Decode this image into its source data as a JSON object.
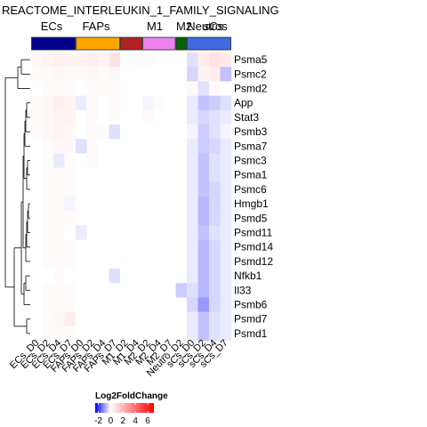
{
  "chart_data": {
    "type": "heatmap",
    "title": "REACTOME_INTERLEUKIN_1_FAMILY_SIGNALING",
    "group_labels": [
      "ECs",
      "FAPs",
      "M1",
      "M2",
      "Neutros",
      "sCs"
    ],
    "groups": [
      {
        "name": "ECs",
        "color": "#00008b",
        "span": [
          0,
          3
        ]
      },
      {
        "name": "FAPs",
        "color": "#ffa500",
        "span": [
          4,
          7
        ]
      },
      {
        "name": "M1",
        "color": "#b22222",
        "span": [
          8,
          9
        ]
      },
      {
        "name": "M2",
        "color": "#ee82ee",
        "span": [
          10,
          12
        ]
      },
      {
        "name": "Neutros",
        "color": "#006400",
        "span": [
          13,
          13
        ]
      },
      {
        "name": "sCs",
        "color": "#4169e1",
        "span": [
          14,
          17
        ]
      }
    ],
    "columns": [
      "ECs_D0",
      "ECs_D2",
      "ECs_D4",
      "ECs_D7",
      "FAPs_D0",
      "FAPs_D2",
      "FAPs_D4",
      "FAPs_D7",
      "M1_D2",
      "M1_D4",
      "M2_D2",
      "M2_D4",
      "M2_D7",
      "Neutro_D2",
      "sCs_D0",
      "sCs_D2",
      "sCs_D4",
      "sCs_D7"
    ],
    "rows": [
      "Psma5",
      "Psmc2",
      "Psmd2",
      "App",
      "Stat3",
      "Psmb3",
      "Psma7",
      "Psmc3",
      "Psma1",
      "Psmc6",
      "Hmgb1",
      "Psmd5",
      "Psmd11",
      "Psmd14",
      "Psmd12",
      "Nfkb1",
      "Il33",
      "Psmb6",
      "Psmd7",
      "Psmd1"
    ],
    "values": [
      [
        0.2,
        0.3,
        0.4,
        0.3,
        0.3,
        0.4,
        0.3,
        0.8,
        0.0,
        0.1,
        0.1,
        0.0,
        0.0,
        0.0,
        -0.3,
        0.5,
        0.8,
        0.6
      ],
      [
        0.1,
        0.1,
        0.2,
        0.1,
        0.1,
        0.2,
        0.1,
        0.2,
        0.0,
        0.0,
        0.0,
        0.0,
        0.0,
        0.0,
        -0.4,
        0.3,
        0.5,
        -0.6
      ],
      [
        0.0,
        0.1,
        0.1,
        0.1,
        0.0,
        0.1,
        0.1,
        0.1,
        0.0,
        0.0,
        0.0,
        0.0,
        0.0,
        0.0,
        0.2,
        -0.3,
        0.1,
        0.0
      ],
      [
        0.1,
        0.2,
        0.4,
        0.3,
        -0.2,
        0.1,
        0.0,
        0.1,
        0.0,
        0.0,
        -0.1,
        0.1,
        0.0,
        0.0,
        -0.2,
        -0.6,
        -0.5,
        -0.3
      ],
      [
        0.1,
        0.2,
        0.3,
        0.3,
        0.0,
        0.1,
        0.0,
        0.1,
        0.0,
        0.0,
        0.1,
        0.0,
        0.0,
        0.0,
        -0.2,
        -0.4,
        -0.3,
        -0.2
      ],
      [
        0.1,
        0.2,
        0.3,
        0.2,
        0.0,
        0.1,
        0.1,
        -0.3,
        0.0,
        0.0,
        0.0,
        0.0,
        0.0,
        0.0,
        -0.1,
        -0.5,
        -0.3,
        -0.1
      ],
      [
        0.0,
        0.1,
        0.2,
        0.2,
        -0.3,
        0.1,
        0.0,
        0.0,
        0.0,
        0.0,
        0.0,
        0.0,
        0.0,
        0.0,
        -0.2,
        -0.5,
        -0.4,
        -0.2
      ],
      [
        0.0,
        0.1,
        -0.2,
        0.1,
        0.0,
        0.1,
        0.0,
        0.0,
        0.0,
        0.0,
        0.0,
        0.0,
        0.0,
        0.0,
        -0.2,
        -0.6,
        -0.3,
        -0.2
      ],
      [
        0.0,
        0.1,
        0.1,
        0.1,
        0.0,
        0.0,
        0.0,
        0.0,
        0.0,
        0.0,
        0.0,
        0.0,
        0.0,
        0.0,
        -0.2,
        -0.6,
        -0.3,
        -0.2
      ],
      [
        0.0,
        0.1,
        0.1,
        0.1,
        0.0,
        0.0,
        0.0,
        0.0,
        0.0,
        0.0,
        0.0,
        0.0,
        0.0,
        0.0,
        -0.2,
        -0.6,
        -0.4,
        -0.2
      ],
      [
        0.0,
        0.1,
        0.1,
        -0.1,
        0.0,
        0.0,
        0.0,
        0.0,
        0.0,
        0.0,
        0.0,
        0.0,
        0.0,
        0.0,
        -0.2,
        -0.7,
        -0.4,
        -0.2
      ],
      [
        0.0,
        0.1,
        0.1,
        0.1,
        0.0,
        0.0,
        0.0,
        0.0,
        0.0,
        0.0,
        0.0,
        0.0,
        0.0,
        0.0,
        -0.2,
        -0.7,
        -0.4,
        -0.2
      ],
      [
        0.0,
        0.1,
        0.1,
        0.0,
        -0.2,
        0.0,
        0.0,
        0.0,
        0.0,
        0.0,
        0.0,
        0.0,
        0.0,
        0.0,
        -0.2,
        -0.6,
        -0.3,
        -0.2
      ],
      [
        0.0,
        0.1,
        0.1,
        0.1,
        0.0,
        0.0,
        0.0,
        0.0,
        0.0,
        0.0,
        0.0,
        0.0,
        0.0,
        0.0,
        -0.2,
        -0.7,
        -0.4,
        -0.2
      ],
      [
        0.0,
        0.1,
        0.1,
        0.1,
        0.0,
        0.0,
        0.0,
        0.0,
        0.0,
        0.0,
        0.0,
        0.0,
        0.0,
        0.0,
        -0.2,
        -0.7,
        -0.4,
        -0.2
      ],
      [
        0.0,
        0.0,
        0.1,
        0.0,
        0.0,
        0.0,
        0.0,
        -0.3,
        0.0,
        0.0,
        0.0,
        0.0,
        0.0,
        0.0,
        -0.2,
        -0.7,
        -0.4,
        -0.2
      ],
      [
        0.0,
        0.1,
        0.1,
        0.1,
        0.0,
        0.0,
        0.0,
        0.0,
        0.0,
        0.0,
        0.0,
        0.0,
        0.0,
        -0.5,
        -0.3,
        -0.7,
        -0.4,
        -0.2
      ],
      [
        0.0,
        0.1,
        0.1,
        0.1,
        0.0,
        0.0,
        0.0,
        0.0,
        0.0,
        0.0,
        0.0,
        0.0,
        0.0,
        0.0,
        -0.4,
        -1.0,
        -0.4,
        -0.2
      ],
      [
        0.0,
        0.1,
        0.2,
        0.5,
        0.0,
        0.0,
        0.0,
        0.0,
        0.0,
        0.0,
        0.0,
        0.0,
        0.0,
        0.0,
        -0.2,
        -0.6,
        -0.3,
        -0.2
      ],
      [
        0.0,
        0.1,
        0.1,
        0.1,
        0.0,
        0.0,
        0.0,
        0.0,
        0.0,
        0.0,
        0.0,
        0.0,
        0.0,
        0.0,
        -0.2,
        -0.6,
        -0.3,
        -0.2
      ]
    ],
    "legend": {
      "title": "Log2FoldChange",
      "ticks": [
        -2,
        0,
        2,
        4,
        6
      ],
      "range": [
        -2.5,
        7
      ],
      "colors": [
        "#0000ff",
        "#ffffff",
        "#ff0000"
      ]
    }
  }
}
